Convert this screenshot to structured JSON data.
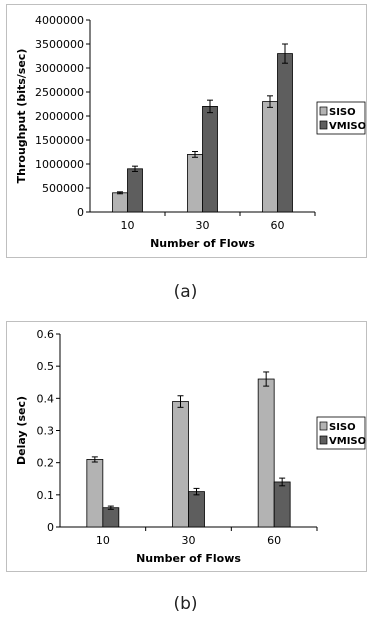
{
  "chart_data": [
    {
      "type": "bar",
      "caption": "(a)",
      "categories": [
        "10",
        "30",
        "60"
      ],
      "series": [
        {
          "name": "SISO",
          "values": [
            400000,
            1200000,
            2300000
          ],
          "errors": [
            20000,
            60000,
            120000
          ]
        },
        {
          "name": "VMISO",
          "values": [
            900000,
            2200000,
            3300000
          ],
          "errors": [
            55000,
            130000,
            200000
          ]
        }
      ],
      "xlabel": "Number of Flows",
      "ylabel": "Throughput (bits/sec)",
      "ylim": [
        0,
        4000000
      ],
      "yticks": [
        "0",
        "500000",
        "1000000",
        "1500000",
        "2000000",
        "2500000",
        "3000000",
        "3500000",
        "4000000"
      ],
      "grid": false,
      "legend": "right"
    },
    {
      "type": "bar",
      "caption": "(b)",
      "categories": [
        "10",
        "30",
        "60"
      ],
      "series": [
        {
          "name": "SISO",
          "values": [
            0.21,
            0.39,
            0.46
          ],
          "errors": [
            0.008,
            0.018,
            0.022
          ]
        },
        {
          "name": "VMISO",
          "values": [
            0.06,
            0.11,
            0.14
          ],
          "errors": [
            0.005,
            0.01,
            0.012
          ]
        }
      ],
      "xlabel": "Number of Flows",
      "ylabel": "Delay (sec)",
      "ylim": [
        0,
        0.6
      ],
      "yticks": [
        "0",
        "0.1",
        "0.2",
        "0.3",
        "0.4",
        "0.5",
        "0.6"
      ],
      "grid": false,
      "legend": "right"
    }
  ],
  "colors": {
    "SISO": "#b3b3b3",
    "VMISO": "#5e5e5e"
  }
}
